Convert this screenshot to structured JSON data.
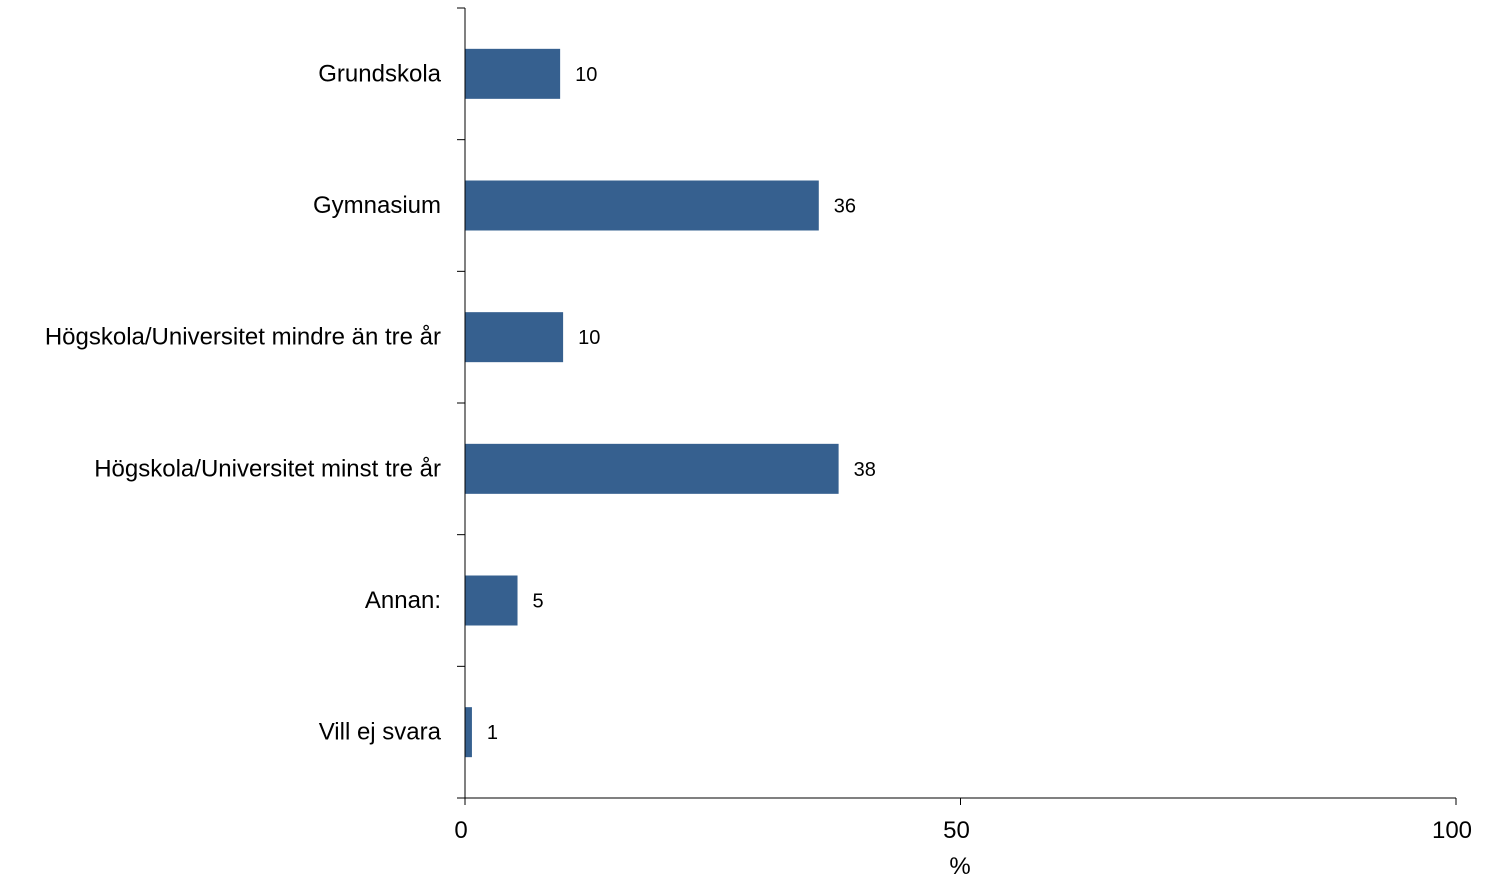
{
  "chart_data": {
    "type": "bar",
    "orientation": "horizontal",
    "categories": [
      "Grundskola",
      "Gymnasium",
      "Högskola/Universitet mindre än tre år",
      "Högskola/Universitet minst tre år",
      "Annan:",
      "Vill ej svara"
    ],
    "values": [
      9.6,
      35.7,
      9.9,
      37.7,
      5.3,
      0.7
    ],
    "data_labels": [
      "10",
      "36",
      "10",
      "38",
      "5",
      "1"
    ],
    "xlabel": "%",
    "xlim": [
      0,
      100
    ],
    "x_ticks": [
      0,
      50,
      100
    ],
    "x_tick_labels": [
      "0",
      "50",
      "100"
    ],
    "grid": false,
    "legend": "none",
    "bar_color": "#36608F"
  }
}
